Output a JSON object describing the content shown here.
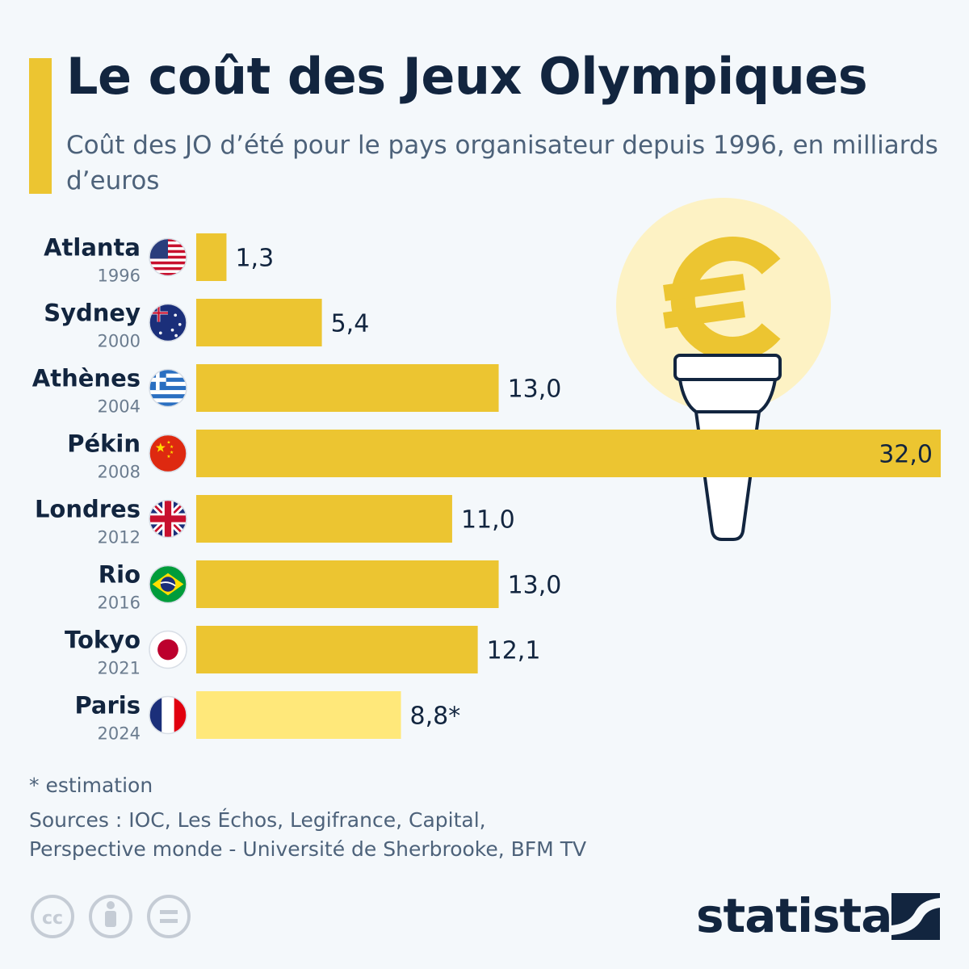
{
  "header": {
    "title": "Le coût des Jeux Olympiques",
    "subtitle": "Coût des JO d’été pour le pays organisateur depuis 1996, en milliards d’euros"
  },
  "chart_data": {
    "type": "bar",
    "orientation": "horizontal",
    "title": "Le coût des Jeux Olympiques",
    "subtitle": "Coût des JO d’été pour le pays organisateur depuis 1996, en milliards d’euros",
    "xlim": [
      0,
      32
    ],
    "grid": false,
    "categories": [
      {
        "city": "Atlanta",
        "year": "1996",
        "flag": "usa-flag-icon",
        "value": 1.3,
        "label": "1,3",
        "color": "#ecc531"
      },
      {
        "city": "Sydney",
        "year": "2000",
        "flag": "australia-flag-icon",
        "value": 5.4,
        "label": "5,4",
        "color": "#ecc531"
      },
      {
        "city": "Athènes",
        "year": "2004",
        "flag": "greece-flag-icon",
        "value": 13.0,
        "label": "13,0",
        "color": "#ecc531"
      },
      {
        "city": "Pékin",
        "year": "2008",
        "flag": "china-flag-icon",
        "value": 32.0,
        "label": "32,0",
        "color": "#ecc531"
      },
      {
        "city": "Londres",
        "year": "2012",
        "flag": "uk-flag-icon",
        "value": 11.0,
        "label": "11,0",
        "color": "#ecc531"
      },
      {
        "city": "Rio",
        "year": "2016",
        "flag": "brazil-flag-icon",
        "value": 13.0,
        "label": "13,0",
        "color": "#ecc531"
      },
      {
        "city": "Tokyo",
        "year": "2021",
        "flag": "japan-flag-icon",
        "value": 12.1,
        "label": "12,1",
        "color": "#ecc531"
      },
      {
        "city": "Paris",
        "year": "2024",
        "flag": "france-flag-icon",
        "value": 8.8,
        "label": "8,8*",
        "color": "#ffe87a"
      }
    ]
  },
  "footer": {
    "footnote": "* estimation",
    "sources_line1": "Sources : IOC, Les Échos, Legifrance, Capital,",
    "sources_line2": "Perspective monde - Université de Sherbrooke, BFM TV",
    "logo": "statista"
  },
  "colors": {
    "accent": "#ecc531",
    "estimate": "#ffe87a",
    "navy": "#12253f",
    "muted": "#4d627a",
    "halo": "#fdf2c4"
  },
  "icons": [
    "euro-torch-icon",
    "cc-icon",
    "attribution-icon",
    "no-derivatives-icon",
    "statista-logo-icon"
  ]
}
